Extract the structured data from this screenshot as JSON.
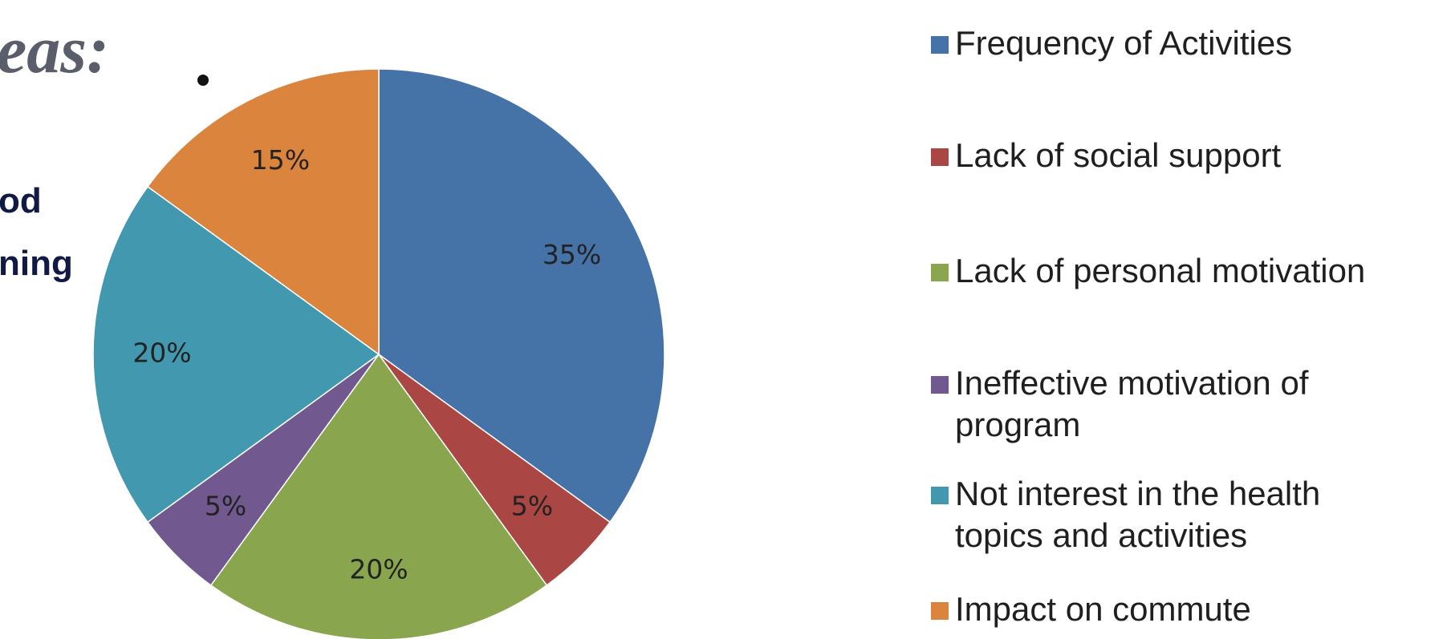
{
  "slide": {
    "heading_fragment": "eas:",
    "body_lines": [
      "od",
      "ning"
    ]
  },
  "chart_data": {
    "type": "pie",
    "title": "",
    "start_angle_deg": 0,
    "direction": "clockwise",
    "slices": [
      {
        "label": "Frequency of Activities",
        "value": 35,
        "display": "35%",
        "color": "#4572a7"
      },
      {
        "label": "Lack of social support",
        "value": 5,
        "display": "5%",
        "color": "#aa4643"
      },
      {
        "label": "Lack of personal motivation",
        "value": 20,
        "display": "20%",
        "color": "#89a54e"
      },
      {
        "label": "Ineffective motivation of program",
        "value": 5,
        "display": "5%",
        "color": "#71588f"
      },
      {
        "label": "Not interest in the health topics and activities",
        "value": 20,
        "display": "20%",
        "color": "#4198af"
      },
      {
        "label": "Impact on commute",
        "value": 15,
        "display": "15%",
        "color": "#db843d"
      }
    ],
    "legend": {
      "position": "right",
      "entries": [
        "Frequency of Activities",
        "Lack of social support",
        "Lack of personal motivation",
        "Ineffective motivation of program",
        "Not interest in the health topics and activities",
        "Impact on commute"
      ]
    }
  }
}
